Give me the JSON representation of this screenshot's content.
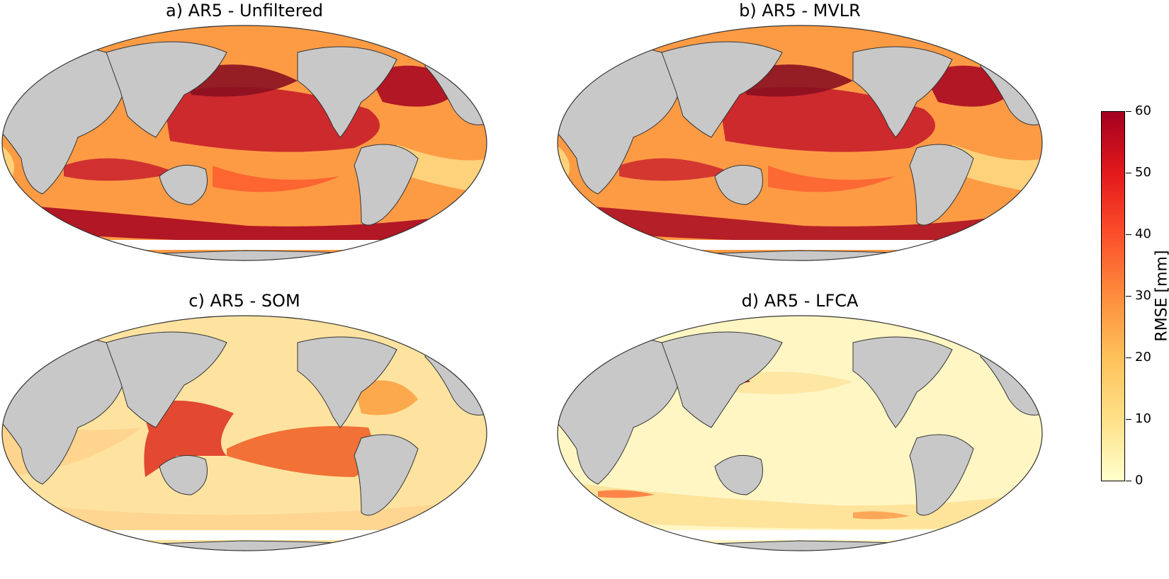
{
  "panels": [
    {
      "title": "a) AR5 - Unfiltered",
      "intensity": "high"
    },
    {
      "title": "b) AR5 - MVLR",
      "intensity": "high"
    },
    {
      "title": "c) AR5 - SOM",
      "intensity": "medium"
    },
    {
      "title": "d) AR5 - LFCA",
      "intensity": "low"
    }
  ],
  "colorbar": {
    "label": "RMSE [mm]",
    "ticks": [
      "0",
      "10",
      "20",
      "30",
      "40",
      "50",
      "60"
    ],
    "range": [
      0,
      60
    ],
    "colors": [
      "#ffffcc",
      "#fee087",
      "#fec25a",
      "#fd8d3c",
      "#fc4e2a",
      "#e31a1c",
      "#a3001f"
    ]
  },
  "colors": {
    "land": "#c8c8c8",
    "ice": "#ffffff",
    "coast": "#333333"
  }
}
